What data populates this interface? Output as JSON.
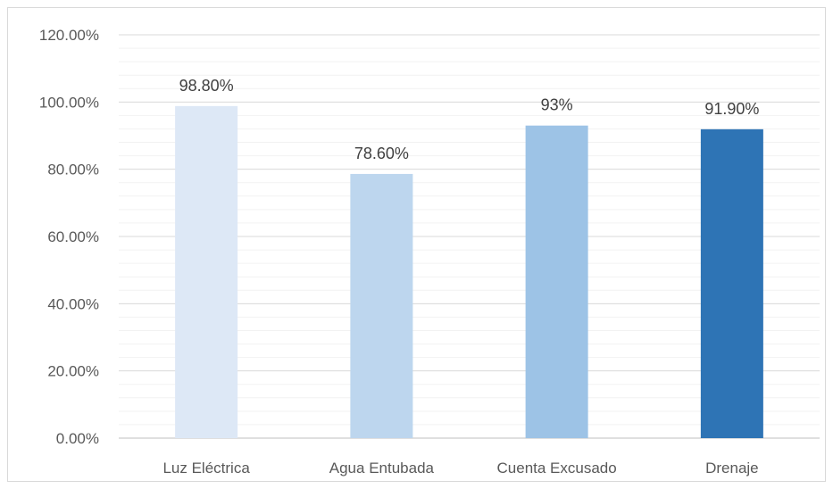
{
  "chart_data": {
    "type": "bar",
    "title": "",
    "xlabel": "",
    "ylabel": "",
    "categories": [
      "Luz Eléctrica",
      "Agua Entubada",
      "Cuenta Excusado",
      "Drenaje"
    ],
    "values": [
      98.8,
      78.6,
      93,
      91.9
    ],
    "data_labels": [
      "98.80%",
      "78.60%",
      "93%",
      "91.90%"
    ],
    "bar_colors": [
      "#dde8f6",
      "#bdd6ee",
      "#9dc3e6",
      "#2e74b5"
    ],
    "ylim": [
      0,
      120
    ],
    "y_ticks": [
      0,
      20,
      40,
      60,
      80,
      100,
      120
    ],
    "y_tick_labels": [
      "0.00%",
      "20.00%",
      "40.00%",
      "60.00%",
      "80.00%",
      "100.00%",
      "120.00%"
    ],
    "grid": true,
    "minor_grid": true,
    "legend": "none"
  }
}
